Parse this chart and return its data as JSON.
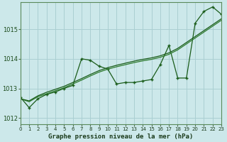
{
  "title": "Graphe pression niveau de la mer (hPa)",
  "bg_color": "#cce8ea",
  "grid_color": "#aacfd2",
  "line_color1": "#1a5c1a",
  "line_color2": "#2d7a2d",
  "line_color3": "#1a5c1a",
  "xlim": [
    0,
    23
  ],
  "ylim": [
    1011.8,
    1015.9
  ],
  "yticks": [
    1012,
    1013,
    1014,
    1015
  ],
  "xticks": [
    0,
    1,
    2,
    3,
    4,
    5,
    6,
    7,
    8,
    9,
    10,
    11,
    12,
    13,
    14,
    15,
    16,
    17,
    18,
    19,
    20,
    21,
    22,
    23
  ],
  "series1": {
    "x": [
      0,
      1,
      2,
      3,
      4,
      5,
      6,
      7,
      8,
      9,
      10,
      11,
      12,
      13,
      14,
      15,
      16,
      17,
      18,
      19,
      20,
      21,
      22,
      23
    ],
    "y": [
      1012.7,
      1012.35,
      1012.65,
      1012.8,
      1012.88,
      1013.0,
      1013.1,
      1014.0,
      1013.95,
      1013.75,
      1013.65,
      1013.15,
      1013.2,
      1013.2,
      1013.25,
      1013.3,
      1013.8,
      1014.45,
      1013.35,
      1013.35,
      1015.2,
      1015.6,
      1015.75,
      1015.5
    ]
  },
  "series2": {
    "x": [
      0,
      1,
      2,
      3,
      4,
      5,
      6,
      7,
      8,
      9,
      10,
      11,
      12,
      13,
      14,
      15,
      16,
      17,
      18,
      19,
      20,
      21,
      22,
      23
    ],
    "y": [
      1012.65,
      1012.55,
      1012.72,
      1012.82,
      1012.92,
      1013.02,
      1013.15,
      1013.28,
      1013.42,
      1013.55,
      1013.65,
      1013.73,
      1013.8,
      1013.87,
      1013.93,
      1013.98,
      1014.05,
      1014.15,
      1014.3,
      1014.5,
      1014.7,
      1014.9,
      1015.1,
      1015.3
    ]
  },
  "series3": {
    "x": [
      0,
      1,
      2,
      3,
      4,
      5,
      6,
      7,
      8,
      9,
      10,
      11,
      12,
      13,
      14,
      15,
      16,
      17,
      18,
      19,
      20,
      21,
      22,
      23
    ],
    "y": [
      1012.65,
      1012.58,
      1012.75,
      1012.87,
      1012.97,
      1013.07,
      1013.2,
      1013.33,
      1013.47,
      1013.6,
      1013.7,
      1013.78,
      1013.85,
      1013.92,
      1013.98,
      1014.03,
      1014.1,
      1014.2,
      1014.35,
      1014.55,
      1014.75,
      1014.95,
      1015.15,
      1015.35
    ]
  }
}
